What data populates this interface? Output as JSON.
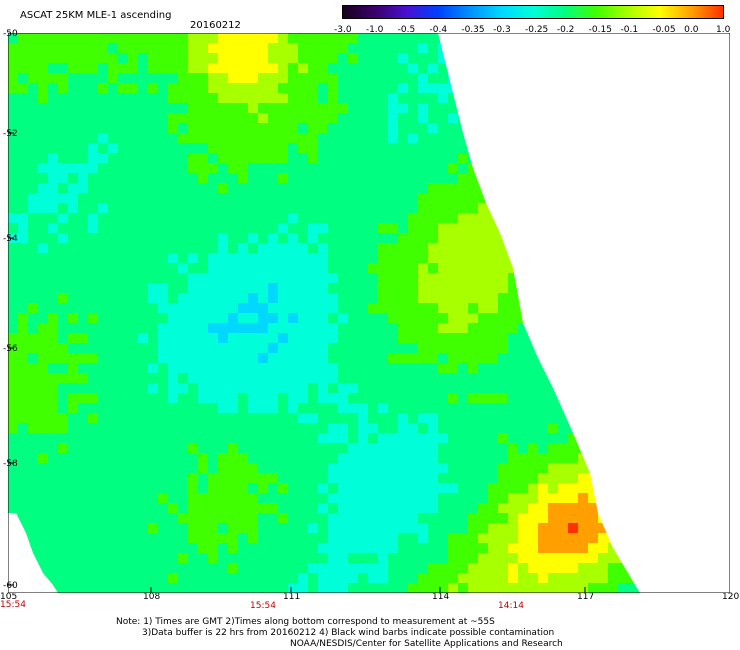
{
  "header": {
    "title": "ASCAT 25KM MLE-1 ascending",
    "date": "20160212"
  },
  "colorbar": {
    "labels": [
      "-3.0",
      "-1.0",
      "-0.5",
      "-0.4",
      "-0.35",
      "-0.3",
      "-0.25",
      "-0.2",
      "-0.15",
      "-0.1",
      "-0.05",
      "0.0",
      "1.0"
    ],
    "colors": [
      "#180020",
      "#3a006a",
      "#4a10d0",
      "#0040ff",
      "#0090ff",
      "#00d8ff",
      "#00ffd8",
      "#00ff80",
      "#40ff00",
      "#a8ff00",
      "#ffff00",
      "#ffa000",
      "#ff3000"
    ]
  },
  "axes": {
    "y_labels": [
      "-50",
      "-52",
      "-54",
      "-56",
      "-58",
      "-60"
    ],
    "x_labels": [
      "105",
      "108",
      "111",
      "114",
      "117",
      "120"
    ]
  },
  "times": [
    "15:54",
    "15:54",
    "14:14"
  ],
  "notes": [
    "Note: 1) Times are GMT 2)Times along bottom correspond to measurement at ~55S",
    "3)Data buffer is 22 hrs from 20160212 4) Black wind barbs indicate possible contamination",
    "NOAA/NESDIS/Center for Satellite Applications and Research"
  ]
}
